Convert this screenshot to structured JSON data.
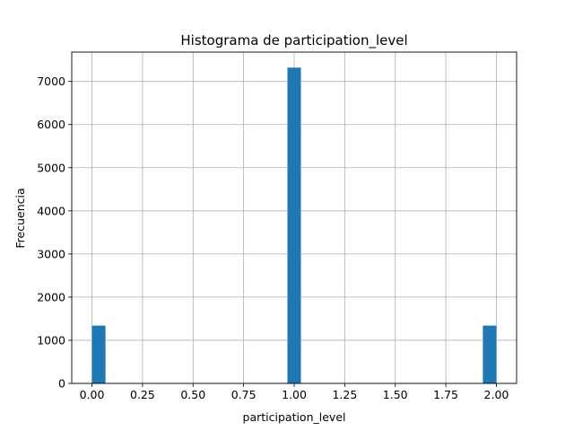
{
  "chart_data": {
    "type": "bar",
    "title": "Histograma de participation_level",
    "xlabel": "participation_level",
    "ylabel": "Frecuencia",
    "xlim": [
      -0.1,
      2.1
    ],
    "ylim": [
      0,
      7680
    ],
    "xticks": [
      0.0,
      0.25,
      0.5,
      0.75,
      1.0,
      1.25,
      1.5,
      1.75,
      2.0
    ],
    "xtick_labels": [
      "0.00",
      "0.25",
      "0.50",
      "0.75",
      "1.00",
      "1.25",
      "1.50",
      "1.75",
      "2.00"
    ],
    "yticks": [
      0,
      1000,
      2000,
      3000,
      4000,
      5000,
      6000,
      7000
    ],
    "ytick_labels": [
      "0",
      "1000",
      "2000",
      "3000",
      "4000",
      "5000",
      "6000",
      "7000"
    ],
    "grid": true,
    "bar_color": "#1f77b4",
    "bars": [
      {
        "x0": 0.0,
        "x1": 0.0667,
        "value": 1340
      },
      {
        "x0": 0.9667,
        "x1": 1.0333,
        "value": 7320
      },
      {
        "x0": 1.9333,
        "x1": 2.0,
        "value": 1340
      }
    ]
  }
}
